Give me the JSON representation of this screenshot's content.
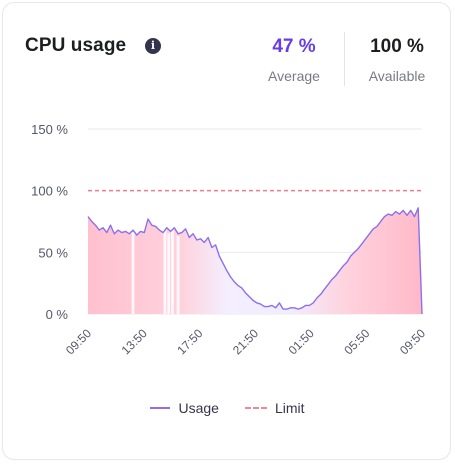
{
  "card": {
    "title": "CPU usage",
    "info_icon": "info-icon",
    "average_value": "47 %",
    "average_label": "Average",
    "available_value": "100 %",
    "available_label": "Available"
  },
  "legend": {
    "usage_label": "Usage",
    "limit_label": "Limit"
  },
  "colors": {
    "accent": "#673de6",
    "usage_line": "#8c6ff0",
    "limit_line": "#f07a8c",
    "area_fill": "#ffc6d3"
  },
  "chart_data": {
    "type": "area",
    "ylim": [
      0,
      150
    ],
    "yticks": [
      0,
      50,
      100,
      150
    ],
    "ytick_labels": [
      "0 %",
      "50 %",
      "100 %",
      "150 %"
    ],
    "xtick_labels": [
      "09:50",
      "13:50",
      "17:50",
      "21:50",
      "01:50",
      "05:50",
      "09:50"
    ],
    "limit": 100,
    "grid": true,
    "legend_position": "bottom",
    "series": [
      {
        "name": "Usage",
        "values": [
          79,
          75,
          72,
          68,
          70,
          66,
          72,
          65,
          68,
          66,
          67,
          65,
          68,
          64,
          67,
          66,
          77,
          72,
          71,
          68,
          66,
          70,
          67,
          70,
          65,
          66,
          69,
          62,
          65,
          60,
          61,
          58,
          62,
          54,
          56,
          47,
          41,
          35,
          30,
          26,
          23,
          21,
          17,
          14,
          11,
          9,
          8,
          6,
          6,
          7,
          5,
          9,
          4,
          4,
          5,
          5,
          4,
          5,
          7,
          7,
          9,
          13,
          16,
          20,
          24,
          28,
          31,
          35,
          39,
          42,
          47,
          50,
          53,
          57,
          61,
          65,
          69,
          71,
          75,
          79,
          81,
          80,
          83,
          81,
          84,
          80,
          84,
          79,
          86,
          0
        ]
      },
      {
        "name": "Limit",
        "values": [
          100
        ]
      }
    ]
  }
}
